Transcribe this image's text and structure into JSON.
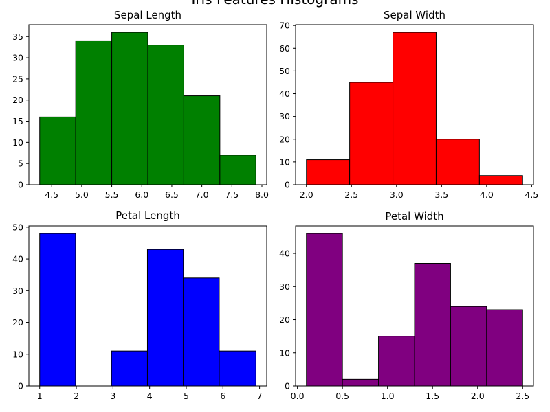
{
  "figure": {
    "title": "Iris Features Histograms"
  },
  "chart_data": [
    {
      "type": "bar",
      "title": "Sepal Length",
      "color": "#008000",
      "bins": [
        [
          4.3,
          4.9,
          16
        ],
        [
          4.9,
          5.5,
          34
        ],
        [
          5.5,
          6.1,
          36
        ],
        [
          6.1,
          6.7,
          33
        ],
        [
          6.7,
          7.3,
          21
        ],
        [
          7.3,
          7.9,
          7
        ]
      ],
      "xlim": [
        4.12,
        8.08
      ],
      "ylim": [
        0,
        37.8
      ],
      "xticks": [
        4.5,
        5.0,
        5.5,
        6.0,
        6.5,
        7.0,
        7.5,
        8.0
      ],
      "xtick_labels": [
        "4.5",
        "5.0",
        "5.5",
        "6.0",
        "6.5",
        "7.0",
        "7.5",
        "8.0"
      ],
      "yticks": [
        0,
        5,
        10,
        15,
        20,
        25,
        30,
        35
      ],
      "ytick_labels": [
        "0",
        "5",
        "10",
        "15",
        "20",
        "25",
        "30",
        "35"
      ],
      "xlabel": "",
      "ylabel": ""
    },
    {
      "type": "bar",
      "title": "Sepal Width",
      "color": "#ff0000",
      "bins": [
        [
          2.0,
          2.48,
          11
        ],
        [
          2.48,
          2.96,
          45
        ],
        [
          2.96,
          3.44,
          67
        ],
        [
          3.44,
          3.92,
          20
        ],
        [
          3.92,
          4.4,
          4
        ]
      ],
      "xlim": [
        1.88,
        4.52
      ],
      "ylim": [
        0,
        70.35
      ],
      "xticks": [
        2.0,
        2.5,
        3.0,
        3.5,
        4.0,
        4.5
      ],
      "xtick_labels": [
        "2.0",
        "2.5",
        "3.0",
        "3.5",
        "4.0",
        "4.5"
      ],
      "yticks": [
        0,
        10,
        20,
        30,
        40,
        50,
        60,
        70
      ],
      "ytick_labels": [
        "0",
        "10",
        "20",
        "30",
        "40",
        "50",
        "60",
        "70"
      ],
      "xlabel": "",
      "ylabel": ""
    },
    {
      "type": "bar",
      "title": "Petal Length",
      "color": "#0000ff",
      "bins": [
        [
          1.0,
          1.98,
          48
        ],
        [
          1.98,
          2.96,
          0
        ],
        [
          2.96,
          3.94,
          11
        ],
        [
          3.94,
          4.92,
          43
        ],
        [
          4.92,
          5.9,
          34
        ],
        [
          5.9,
          6.9,
          11
        ]
      ],
      "xlim": [
        0.705,
        7.195
      ],
      "ylim": [
        0,
        50.4
      ],
      "xticks": [
        1,
        2,
        3,
        4,
        5,
        6,
        7
      ],
      "xtick_labels": [
        "1",
        "2",
        "3",
        "4",
        "5",
        "6",
        "7"
      ],
      "yticks": [
        0,
        10,
        20,
        30,
        40,
        50
      ],
      "ytick_labels": [
        "0",
        "10",
        "20",
        "30",
        "40",
        "50"
      ],
      "xlabel": "",
      "ylabel": ""
    },
    {
      "type": "bar",
      "title": "Petal Width",
      "color": "#800080",
      "bins": [
        [
          0.1,
          0.5,
          46
        ],
        [
          0.5,
          0.9,
          2
        ],
        [
          0.9,
          1.3,
          15
        ],
        [
          1.3,
          1.7,
          37
        ],
        [
          1.7,
          2.1,
          24
        ],
        [
          2.1,
          2.5,
          23
        ]
      ],
      "xlim": [
        -0.02,
        2.62
      ],
      "ylim": [
        0,
        48.3
      ],
      "xticks": [
        0.0,
        0.5,
        1.0,
        1.5,
        2.0,
        2.5
      ],
      "xtick_labels": [
        "0.0",
        "0.5",
        "1.0",
        "1.5",
        "2.0",
        "2.5"
      ],
      "yticks": [
        0,
        10,
        20,
        30,
        40
      ],
      "ytick_labels": [
        "0",
        "10",
        "20",
        "30",
        "40"
      ],
      "xlabel": "",
      "ylabel": ""
    }
  ]
}
